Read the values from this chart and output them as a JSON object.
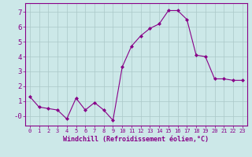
{
  "x": [
    0,
    1,
    2,
    3,
    4,
    5,
    6,
    7,
    8,
    9,
    10,
    11,
    12,
    13,
    14,
    15,
    16,
    17,
    18,
    19,
    20,
    21,
    22,
    23
  ],
  "y": [
    1.3,
    0.6,
    0.5,
    0.4,
    -0.2,
    1.2,
    0.4,
    0.9,
    0.4,
    -0.3,
    3.3,
    4.7,
    5.4,
    5.9,
    6.2,
    7.1,
    7.1,
    6.5,
    4.1,
    4.0,
    2.5,
    2.5,
    2.4,
    2.4
  ],
  "line_color": "#880088",
  "marker": "D",
  "marker_size": 2.0,
  "bg_color": "#cce8e8",
  "grid_color": "#aac8c8",
  "xlabel": "Windchill (Refroidissement éolien,°C)",
  "xlabel_color": "#880088",
  "ylabel_ticks": [
    0,
    1,
    2,
    3,
    4,
    5,
    6,
    7
  ],
  "ylabel_labels": [
    "-0",
    "1",
    "2",
    "3",
    "4",
    "5",
    "6",
    "7"
  ],
  "xlim": [
    -0.5,
    23.5
  ],
  "ylim": [
    -0.65,
    7.6
  ],
  "xtick_labels": [
    "0",
    "1",
    "2",
    "3",
    "4",
    "5",
    "6",
    "7",
    "8",
    "9",
    "10",
    "11",
    "12",
    "13",
    "14",
    "15",
    "16",
    "17",
    "18",
    "19",
    "20",
    "21",
    "22",
    "23"
  ],
  "tick_color": "#880088",
  "spine_color": "#880088",
  "xtick_fontsize": 5.0,
  "ytick_fontsize": 6.5,
  "xlabel_fontsize": 6.0
}
